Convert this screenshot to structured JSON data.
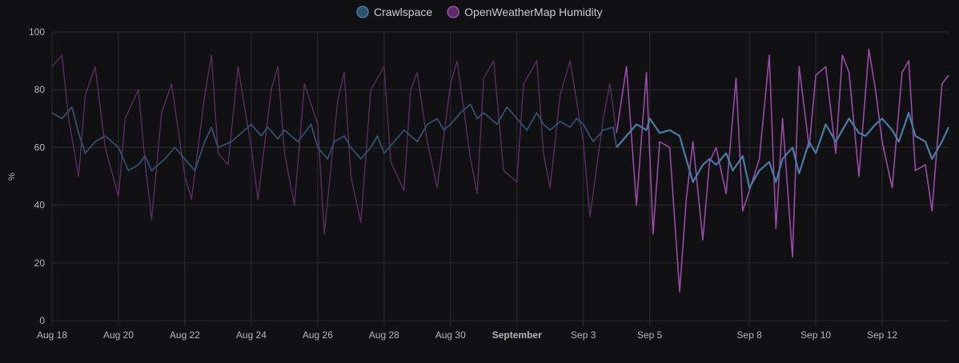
{
  "colors": {
    "background": "#111113",
    "grid": "#2c2c2f",
    "crawlspace_dim": "#30506e",
    "crawlspace": "#4a7aa6",
    "humidity_dim": "#5a2c63",
    "humidity": "#9a4aa8"
  },
  "chart_data": {
    "type": "line",
    "ylabel": "%",
    "ylim": [
      0,
      100
    ],
    "y_ticks": [
      0,
      20,
      40,
      60,
      80,
      100
    ],
    "grid": true,
    "legend_placement": "top-center",
    "x_ticks": [
      {
        "day": 0,
        "label": "Aug 18",
        "bold": false
      },
      {
        "day": 2,
        "label": "Aug 20",
        "bold": false
      },
      {
        "day": 4,
        "label": "Aug 22",
        "bold": false
      },
      {
        "day": 6,
        "label": "Aug 24",
        "bold": false
      },
      {
        "day": 8,
        "label": "Aug 26",
        "bold": false
      },
      {
        "day": 10,
        "label": "Aug 28",
        "bold": false
      },
      {
        "day": 12,
        "label": "Aug 30",
        "bold": false
      },
      {
        "day": 14,
        "label": "September",
        "bold": true
      },
      {
        "day": 16,
        "label": "Sep 3",
        "bold": false
      },
      {
        "day": 18,
        "label": "Sep 5",
        "bold": false
      },
      {
        "day": 21,
        "label": "Sep 8",
        "bold": false
      },
      {
        "day": 23,
        "label": "Sep 10",
        "bold": false
      },
      {
        "day": 25,
        "label": "Sep 12",
        "bold": false
      }
    ],
    "x_range_days": [
      0,
      27.0
    ],
    "highlight_from_day": 17.0,
    "series": [
      {
        "name": "Crawlspace",
        "key": "crawlspace",
        "x_days": [
          0,
          0.3,
          0.6,
          0.8,
          1.0,
          1.3,
          1.6,
          2.0,
          2.3,
          2.6,
          2.8,
          3.0,
          3.4,
          3.7,
          4.0,
          4.3,
          4.6,
          4.8,
          5.0,
          5.4,
          5.7,
          6.0,
          6.3,
          6.5,
          6.8,
          7.0,
          7.4,
          7.8,
          8.0,
          8.3,
          8.5,
          8.8,
          9.0,
          9.3,
          9.6,
          9.8,
          10.0,
          10.3,
          10.6,
          10.8,
          11.0,
          11.3,
          11.6,
          11.8,
          12.0,
          12.3,
          12.6,
          12.8,
          13.0,
          13.4,
          13.7,
          14.0,
          14.3,
          14.6,
          14.8,
          15.0,
          15.3,
          15.6,
          15.8,
          16.0,
          16.3,
          16.6,
          16.9,
          17.0,
          17.3,
          17.6,
          17.9,
          18.0,
          18.3,
          18.6,
          18.9,
          19.0,
          19.3,
          19.6,
          19.8,
          20.0,
          20.3,
          20.5,
          20.8,
          21.0,
          21.3,
          21.6,
          21.8,
          22.0,
          22.3,
          22.5,
          22.8,
          23.0,
          23.3,
          23.6,
          23.8,
          24.0,
          24.3,
          24.5,
          24.8,
          25.0,
          25.3,
          25.5,
          25.8,
          26.0,
          26.3,
          26.5,
          26.8,
          27.0
        ],
        "values": [
          72,
          70,
          74,
          65,
          58,
          62,
          64,
          60,
          52,
          54,
          57,
          52,
          56,
          60,
          56,
          52,
          62,
          67,
          60,
          62,
          65,
          68,
          64,
          67,
          63,
          66,
          62,
          68,
          60,
          56,
          62,
          64,
          60,
          56,
          60,
          64,
          58,
          62,
          66,
          64,
          62,
          68,
          70,
          66,
          68,
          72,
          75,
          70,
          72,
          68,
          74,
          70,
          66,
          72,
          68,
          66,
          69,
          67,
          70,
          68,
          62,
          66,
          67,
          60,
          64,
          68,
          66,
          70,
          65,
          66,
          64,
          60,
          48,
          54,
          56,
          54,
          58,
          52,
          57,
          46,
          52,
          55,
          48,
          56,
          60,
          51,
          62,
          58,
          68,
          62,
          66,
          70,
          65,
          64,
          68,
          70,
          66,
          62,
          72,
          64,
          62,
          56,
          62,
          67
        ]
      },
      {
        "name": "OpenWeatherMap Humidity",
        "key": "humidity",
        "x_days": [
          0,
          0.3,
          0.5,
          0.8,
          1.0,
          1.3,
          1.6,
          2.0,
          2.2,
          2.6,
          2.8,
          3.0,
          3.3,
          3.6,
          4.0,
          4.2,
          4.6,
          4.8,
          5.0,
          5.3,
          5.6,
          6.0,
          6.2,
          6.6,
          6.8,
          7.0,
          7.3,
          7.6,
          8.0,
          8.2,
          8.6,
          8.8,
          9.0,
          9.3,
          9.6,
          10.0,
          10.2,
          10.6,
          10.8,
          11.0,
          11.3,
          11.6,
          12.0,
          12.2,
          12.6,
          12.8,
          13.0,
          13.3,
          13.6,
          14.0,
          14.2,
          14.6,
          14.8,
          15.0,
          15.3,
          15.6,
          16.0,
          16.2,
          16.6,
          16.8,
          17.0,
          17.3,
          17.6,
          17.9,
          18.1,
          18.3,
          18.6,
          18.9,
          19.1,
          19.3,
          19.6,
          19.8,
          20.0,
          20.3,
          20.6,
          20.8,
          21.0,
          21.3,
          21.6,
          21.8,
          22.0,
          22.3,
          22.5,
          22.8,
          23.0,
          23.3,
          23.6,
          23.8,
          24.0,
          24.3,
          24.6,
          24.8,
          25.0,
          25.3,
          25.6,
          25.8,
          26.0,
          26.3,
          26.5,
          26.8,
          27.0
        ],
        "values": [
          88,
          92,
          70,
          50,
          78,
          88,
          60,
          43,
          70,
          80,
          55,
          35,
          72,
          82,
          50,
          42,
          78,
          92,
          58,
          54,
          88,
          60,
          42,
          80,
          88,
          58,
          40,
          82,
          68,
          30,
          76,
          86,
          50,
          34,
          80,
          88,
          55,
          45,
          80,
          86,
          62,
          46,
          82,
          90,
          56,
          44,
          84,
          90,
          52,
          48,
          82,
          90,
          58,
          46,
          78,
          90,
          62,
          36,
          70,
          82,
          65,
          88,
          40,
          86,
          30,
          62,
          60,
          10,
          42,
          62,
          28,
          55,
          60,
          44,
          84,
          38,
          45,
          56,
          92,
          32,
          70,
          22,
          88,
          60,
          85,
          88,
          58,
          92,
          86,
          50,
          94,
          80,
          62,
          46,
          86,
          90,
          52,
          54,
          38,
          82,
          85
        ]
      }
    ]
  }
}
